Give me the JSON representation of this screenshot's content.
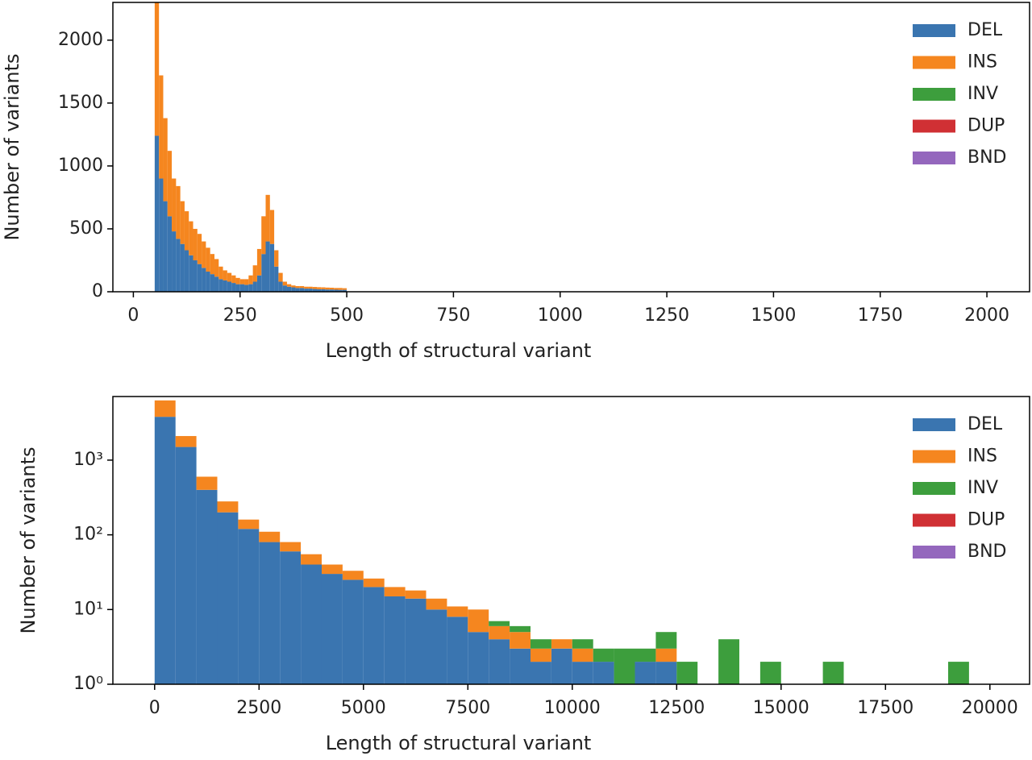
{
  "chart_data": [
    {
      "type": "histogram",
      "xlabel": "Length of structural variant",
      "ylabel": "Number of variants",
      "bins": [
        50,
        60,
        70,
        80,
        90,
        100,
        110,
        120,
        130,
        140,
        150,
        160,
        170,
        180,
        190,
        200,
        210,
        220,
        230,
        240,
        250,
        260,
        270,
        280,
        290,
        300,
        310,
        320,
        330,
        340,
        350,
        360,
        370,
        380,
        390,
        400,
        410,
        420,
        430,
        440,
        450,
        460,
        470,
        480,
        490,
        500
      ],
      "series": [
        {
          "name": "DEL",
          "color": "#3a75b0",
          "values": [
            1240,
            900,
            720,
            600,
            480,
            420,
            380,
            330,
            290,
            250,
            220,
            190,
            160,
            140,
            120,
            100,
            90,
            80,
            70,
            60,
            60,
            55,
            60,
            80,
            130,
            300,
            400,
            380,
            200,
            80,
            50,
            40,
            35,
            30,
            30,
            25,
            25,
            22,
            20,
            20,
            18,
            18,
            16,
            15,
            15
          ]
        },
        {
          "name": "INS",
          "color": "#f5861f",
          "values": [
            1060,
            820,
            660,
            520,
            420,
            420,
            340,
            310,
            270,
            250,
            240,
            210,
            190,
            160,
            140,
            100,
            80,
            70,
            60,
            50,
            40,
            45,
            70,
            130,
            210,
            300,
            370,
            270,
            130,
            70,
            30,
            20,
            15,
            15,
            15,
            15,
            15,
            16,
            16,
            15,
            15,
            14,
            14,
            15,
            13
          ]
        },
        {
          "name": "INV",
          "color": "#3d9e3d",
          "values": [
            0,
            0,
            0,
            0,
            0,
            0,
            0,
            0,
            0,
            0,
            0,
            0,
            0,
            0,
            0,
            0,
            0,
            0,
            0,
            0,
            0,
            0,
            0,
            0,
            0,
            0,
            0,
            0,
            0,
            0,
            0,
            0,
            0,
            0,
            0,
            0,
            0,
            0,
            0,
            0,
            0,
            0,
            0,
            0,
            0
          ]
        },
        {
          "name": "DUP",
          "color": "#d03034",
          "values": [
            0,
            0,
            0,
            0,
            0,
            0,
            0,
            0,
            0,
            0,
            0,
            0,
            0,
            0,
            0,
            0,
            0,
            0,
            0,
            0,
            0,
            0,
            0,
            0,
            0,
            0,
            0,
            0,
            0,
            0,
            0,
            0,
            0,
            0,
            0,
            0,
            0,
            0,
            0,
            0,
            0,
            0,
            0,
            0,
            0
          ]
        },
        {
          "name": "BND",
          "color": "#9467bd",
          "values": [
            0,
            0,
            0,
            0,
            0,
            0,
            0,
            0,
            0,
            0,
            0,
            0,
            0,
            0,
            0,
            0,
            0,
            0,
            0,
            0,
            0,
            0,
            0,
            0,
            0,
            0,
            0,
            0,
            0,
            0,
            0,
            0,
            0,
            0,
            0,
            0,
            0,
            0,
            0,
            0,
            0,
            0,
            0,
            0,
            0
          ]
        }
      ],
      "xlim": [
        -48,
        2100
      ],
      "xticks": [
        0,
        250,
        500,
        750,
        1000,
        1250,
        1500,
        1750,
        2000
      ],
      "ylim": [
        0,
        2300
      ],
      "yticks": [
        0,
        500,
        1000,
        1500,
        2000
      ],
      "legend": "upper right"
    },
    {
      "type": "histogram",
      "xlabel": "Length of structural variant",
      "ylabel": "Number of variants",
      "bins": [
        0,
        500,
        1000,
        1500,
        2000,
        2500,
        3000,
        3500,
        4000,
        4500,
        5000,
        5500,
        6000,
        6500,
        7000,
        7500,
        8000,
        8500,
        9000,
        9500,
        10000,
        10500,
        11000,
        11500,
        12000,
        12500,
        13000,
        13500,
        14000,
        14500,
        15000,
        15500,
        16000,
        16500,
        17000,
        17500,
        18000,
        18500,
        19000,
        19500,
        20000
      ],
      "series": [
        {
          "name": "DEL",
          "color": "#3a75b0",
          "values": [
            3800,
            1500,
            400,
            200,
            120,
            80,
            60,
            40,
            30,
            25,
            20,
            15,
            14,
            10,
            8,
            5,
            4,
            3,
            2,
            3,
            2,
            2,
            1,
            2,
            2,
            1,
            0,
            1,
            0,
            1,
            0,
            0,
            1,
            0,
            0,
            0,
            0,
            0,
            1,
            0
          ]
        },
        {
          "name": "INS",
          "color": "#f5861f",
          "values": [
            2500,
            600,
            200,
            80,
            40,
            30,
            20,
            15,
            10,
            8,
            6,
            5,
            4,
            4,
            3,
            5,
            2,
            2,
            1,
            1,
            1,
            0,
            0,
            0,
            1,
            0,
            0,
            0,
            0,
            0,
            0,
            0,
            0,
            0,
            0,
            0,
            0,
            0,
            0,
            0
          ]
        },
        {
          "name": "INV",
          "color": "#3d9e3d",
          "values": [
            0,
            0,
            0,
            0,
            0,
            0,
            0,
            0,
            0,
            0,
            0,
            0,
            0,
            0,
            0,
            0,
            1,
            1,
            1,
            0,
            1,
            1,
            2,
            1,
            2,
            1,
            1,
            3,
            0,
            1,
            1,
            1,
            1,
            1,
            0,
            1,
            1,
            1,
            1,
            0
          ]
        },
        {
          "name": "DUP",
          "color": "#d03034",
          "values": [
            0,
            0,
            0,
            0,
            0,
            0,
            0,
            0,
            0,
            0,
            0,
            0,
            0,
            0,
            0,
            0,
            0,
            0,
            0,
            0,
            0,
            0,
            0,
            0,
            0,
            0,
            0,
            0,
            0,
            0,
            0,
            0,
            0,
            0,
            0,
            0,
            0,
            0,
            0,
            0
          ]
        },
        {
          "name": "BND",
          "color": "#9467bd",
          "values": [
            0,
            0,
            0,
            0,
            0,
            0,
            0,
            0,
            0,
            0,
            0,
            0,
            0,
            0,
            0,
            0,
            0,
            0,
            0,
            0,
            0,
            0,
            0,
            0,
            0,
            0,
            0,
            0,
            0,
            0,
            0,
            0,
            0,
            0,
            0,
            0,
            0,
            0,
            0,
            0
          ]
        }
      ],
      "xlim": [
        -1000,
        20950
      ],
      "xticks": [
        0,
        2500,
        5000,
        7500,
        10000,
        12500,
        15000,
        17500,
        20000
      ],
      "ylim": [
        1,
        7100
      ],
      "log_y": true,
      "yticks": [
        {
          "value": 1,
          "label": "10⁰"
        },
        {
          "value": 10,
          "label": "10¹"
        },
        {
          "value": 100,
          "label": "10²"
        },
        {
          "value": 1000,
          "label": "10³"
        }
      ],
      "legend": "upper right"
    }
  ]
}
